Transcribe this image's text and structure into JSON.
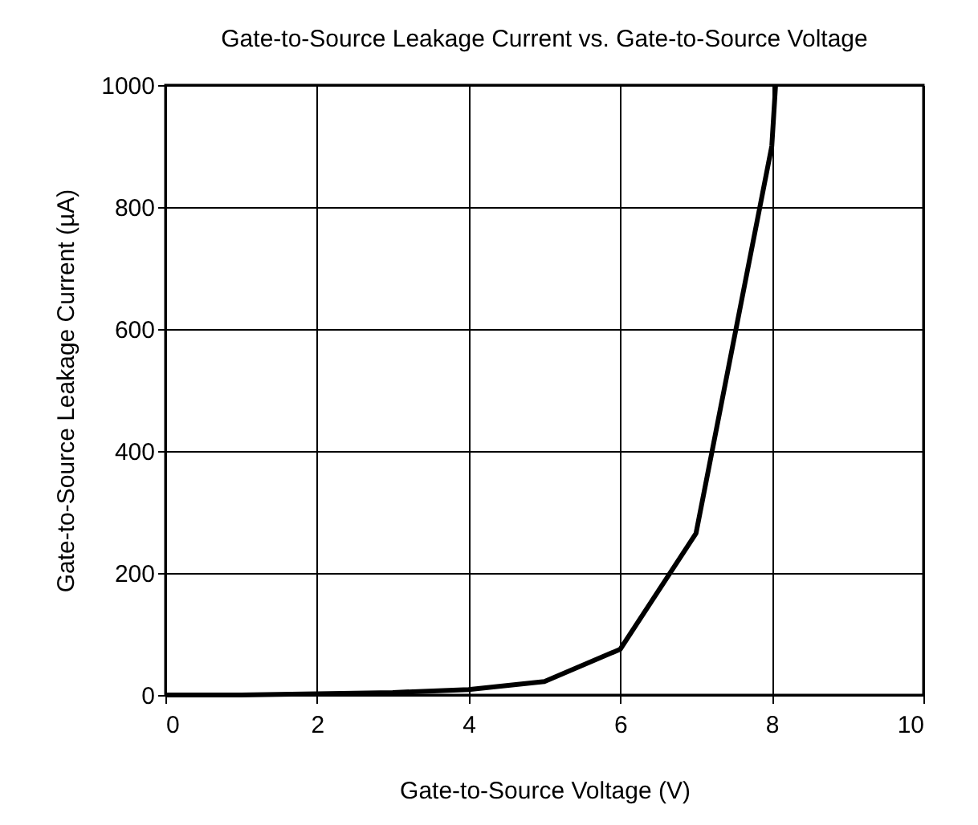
{
  "chart_data": {
    "type": "line",
    "title": "Gate-to-Source Leakage Current vs. Gate-to-Source Voltage",
    "xlabel": "Gate-to-Source Voltage (V)",
    "ylabel": "Gate-to-Source Leakage Current (µA)",
    "x": [
      0,
      1,
      2,
      3,
      4,
      5,
      6,
      7,
      8,
      8.05
    ],
    "series": [
      {
        "color": "#000000",
        "values": [
          0,
          0,
          2,
          4,
          9,
          22,
          75,
          265,
          900,
          1000
        ]
      }
    ],
    "xlim": [
      0,
      10
    ],
    "xticks": [
      0,
      2,
      4,
      6,
      8,
      10
    ],
    "ylim": [
      0,
      1000
    ],
    "yticks": [
      0,
      200,
      400,
      600,
      800,
      1000
    ],
    "grid": true,
    "marker": "none",
    "line_style": "solid"
  }
}
